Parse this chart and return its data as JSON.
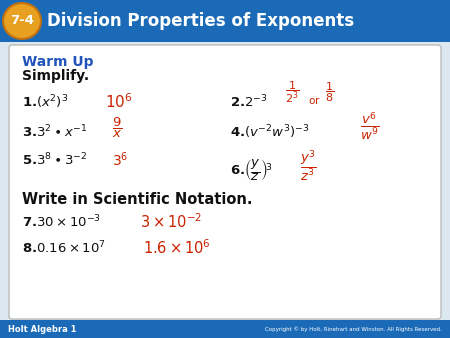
{
  "title_number": "7-4",
  "title_text": "Division Properties of Exponents",
  "header_bg_top": "#1a5fa8",
  "header_bg": "#1a6ab8",
  "header_text_color": "#ffffff",
  "badge_bg": "#e8a020",
  "footer_bg": "#1a6ab8",
  "footer_text": "Holt Algebra 1",
  "footer_right": "Copyright © by Holt, Rinehart and Winston. All Rights Reserved.",
  "body_bg": "#dce8f0",
  "card_bg": "#ffffff",
  "warm_up_color": "#2255bb",
  "answer_color": "#cc2200",
  "black_color": "#111111",
  "card_border": "#bbbbbb"
}
